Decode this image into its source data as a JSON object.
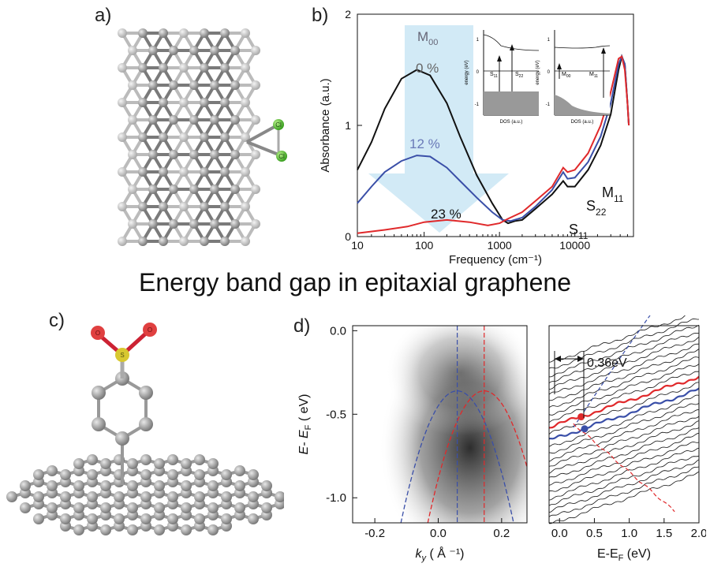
{
  "figure": {
    "title": "Energy band gap in epitaxial graphene",
    "panel_labels": [
      "a)",
      "b)",
      "c)",
      "d)"
    ],
    "molecule_a_atom_labels": [
      "Cl",
      "Cl"
    ],
    "molecule_c_atom_labels": [
      "O",
      "S",
      "O"
    ]
  },
  "panel_b": {
    "arrow_label": "M",
    "arrow_label_sub": "00",
    "curve_labels": [
      "0 %",
      "12 %",
      "23 %"
    ],
    "peak_labels": [
      {
        "main": "S",
        "sub": "11"
      },
      {
        "main": "S",
        "sub": "22"
      },
      {
        "main": "M",
        "sub": "11"
      }
    ],
    "inset1": {
      "ylabel": "energy (eV)",
      "xlabel": "DOS (a.u.)",
      "yticks": [
        "1",
        "0",
        "-1"
      ],
      "labels": [
        {
          "main": "S",
          "sub": "11"
        },
        {
          "main": "S",
          "sub": "22"
        }
      ]
    },
    "inset2": {
      "ylabel": "energy (eV)",
      "xlabel": "DOS (a.u.)",
      "yticks": [
        "1",
        "0",
        "-1"
      ],
      "labels": [
        {
          "main": "M",
          "sub": "00"
        },
        {
          "main": "M",
          "sub": "11"
        }
      ]
    }
  },
  "panel_d": {
    "annotation": "0.36eV"
  },
  "chart_data": [
    {
      "type": "line",
      "panel": "b",
      "xlabel": "Frequency (cm⁻¹)",
      "ylabel": "Absorbance (a.u.)",
      "xscale": "log",
      "xlim": [
        13,
        60000
      ],
      "ylim": [
        0,
        2
      ],
      "xticks": [
        {
          "v": 10,
          "label": "10"
        },
        {
          "v": 100,
          "label": "100"
        },
        {
          "v": 1000,
          "label": "1000"
        },
        {
          "v": 10000,
          "label": "10000"
        }
      ],
      "yticks": [
        {
          "v": 0,
          "label": "0"
        },
        {
          "v": 1,
          "label": "1"
        },
        {
          "v": 2,
          "label": "2"
        }
      ],
      "series": [
        {
          "name": "0 %",
          "color": "#111111",
          "points": [
            [
              13,
              0.6
            ],
            [
              20,
              0.85
            ],
            [
              30,
              1.15
            ],
            [
              50,
              1.42
            ],
            [
              80,
              1.5
            ],
            [
              120,
              1.45
            ],
            [
              200,
              1.2
            ],
            [
              300,
              0.9
            ],
            [
              500,
              0.55
            ],
            [
              800,
              0.3
            ],
            [
              1100,
              0.15
            ],
            [
              1300,
              0.12
            ],
            [
              1600,
              0.14
            ],
            [
              2000,
              0.15
            ],
            [
              3000,
              0.25
            ],
            [
              5000,
              0.38
            ],
            [
              7000,
              0.5
            ],
            [
              8000,
              0.45
            ],
            [
              10000,
              0.45
            ],
            [
              15000,
              0.6
            ],
            [
              22000,
              0.82
            ],
            [
              30000,
              1.1
            ],
            [
              38000,
              1.5
            ],
            [
              42000,
              1.62
            ],
            [
              46000,
              1.55
            ],
            [
              50000,
              1.2
            ],
            [
              52000,
              1.0
            ]
          ]
        },
        {
          "name": "12 %",
          "color": "#3a4fa8",
          "points": [
            [
              13,
              0.3
            ],
            [
              20,
              0.45
            ],
            [
              30,
              0.58
            ],
            [
              50,
              0.68
            ],
            [
              80,
              0.73
            ],
            [
              120,
              0.72
            ],
            [
              200,
              0.62
            ],
            [
              300,
              0.5
            ],
            [
              500,
              0.35
            ],
            [
              800,
              0.22
            ],
            [
              1100,
              0.15
            ],
            [
              1400,
              0.14
            ],
            [
              2000,
              0.17
            ],
            [
              3000,
              0.27
            ],
            [
              5000,
              0.42
            ],
            [
              7000,
              0.58
            ],
            [
              8000,
              0.52
            ],
            [
              10000,
              0.53
            ],
            [
              15000,
              0.67
            ],
            [
              22000,
              0.9
            ],
            [
              30000,
              1.2
            ],
            [
              38000,
              1.55
            ],
            [
              42000,
              1.62
            ],
            [
              46000,
              1.55
            ],
            [
              50000,
              1.2
            ],
            [
              52000,
              1.0
            ]
          ]
        },
        {
          "name": "23 %",
          "color": "#e0292b",
          "points": [
            [
              13,
              0.03
            ],
            [
              30,
              0.06
            ],
            [
              60,
              0.09
            ],
            [
              100,
              0.13
            ],
            [
              200,
              0.15
            ],
            [
              400,
              0.13
            ],
            [
              700,
              0.1
            ],
            [
              1000,
              0.12
            ],
            [
              1300,
              0.16
            ],
            [
              2000,
              0.22
            ],
            [
              3000,
              0.32
            ],
            [
              5000,
              0.45
            ],
            [
              7000,
              0.62
            ],
            [
              8000,
              0.58
            ],
            [
              10000,
              0.6
            ],
            [
              15000,
              0.75
            ],
            [
              22000,
              1.0
            ],
            [
              30000,
              1.3
            ],
            [
              38000,
              1.6
            ],
            [
              42000,
              1.62
            ],
            [
              46000,
              1.5
            ],
            [
              50000,
              1.2
            ],
            [
              52000,
              1.0
            ]
          ]
        }
      ]
    },
    {
      "type": "heatmap",
      "panel": "d-left",
      "xlabel": "k",
      "xlabel_sub": "y",
      "xlabel_unit": " ( Å ⁻¹)",
      "ylabel": "E- E",
      "ylabel_sub": "F",
      "ylabel_unit": " ( eV)",
      "xlim": [
        -0.27,
        0.28
      ],
      "ylim": [
        -1.15,
        0.03
      ],
      "xticks": [
        {
          "v": -0.2,
          "label": "-0.2"
        },
        {
          "v": 0,
          "label": "0.0"
        },
        {
          "v": 0.2,
          "label": "0.2"
        }
      ],
      "yticks": [
        {
          "v": 0,
          "label": "0.0"
        },
        {
          "v": -0.5,
          "label": "-0.5"
        },
        {
          "v": -1,
          "label": "-1.0"
        }
      ],
      "bands": [
        {
          "color": "#3a4fa8",
          "apex_k": 0.06,
          "apex_e": -0.36,
          "curvature": 25
        },
        {
          "color": "#e0292b",
          "apex_k": 0.145,
          "apex_e": -0.36,
          "curvature": 25
        }
      ]
    },
    {
      "type": "line",
      "panel": "d-right",
      "xlabel": "E-E",
      "xlabel_sub": "F",
      "xlabel_unit": " (eV)",
      "xlim": [
        -0.15,
        2.0
      ],
      "xticks": [
        {
          "v": 0,
          "label": "0.0"
        },
        {
          "v": 0.5,
          "label": "0.5"
        },
        {
          "v": 1,
          "label": "1.0"
        },
        {
          "v": 1.5,
          "label": "1.5"
        },
        {
          "v": 2,
          "label": "2.0"
        }
      ],
      "n_curves": 26,
      "highlight": [
        {
          "index": 10,
          "color": "#e0292b"
        },
        {
          "index": 12,
          "color": "#3a4fa8"
        }
      ],
      "markers": [
        {
          "e": 0.31,
          "curve": 10,
          "color": "#e0292b"
        },
        {
          "e": 0.36,
          "curve": 12,
          "color": "#3a4fa8"
        }
      ]
    }
  ]
}
